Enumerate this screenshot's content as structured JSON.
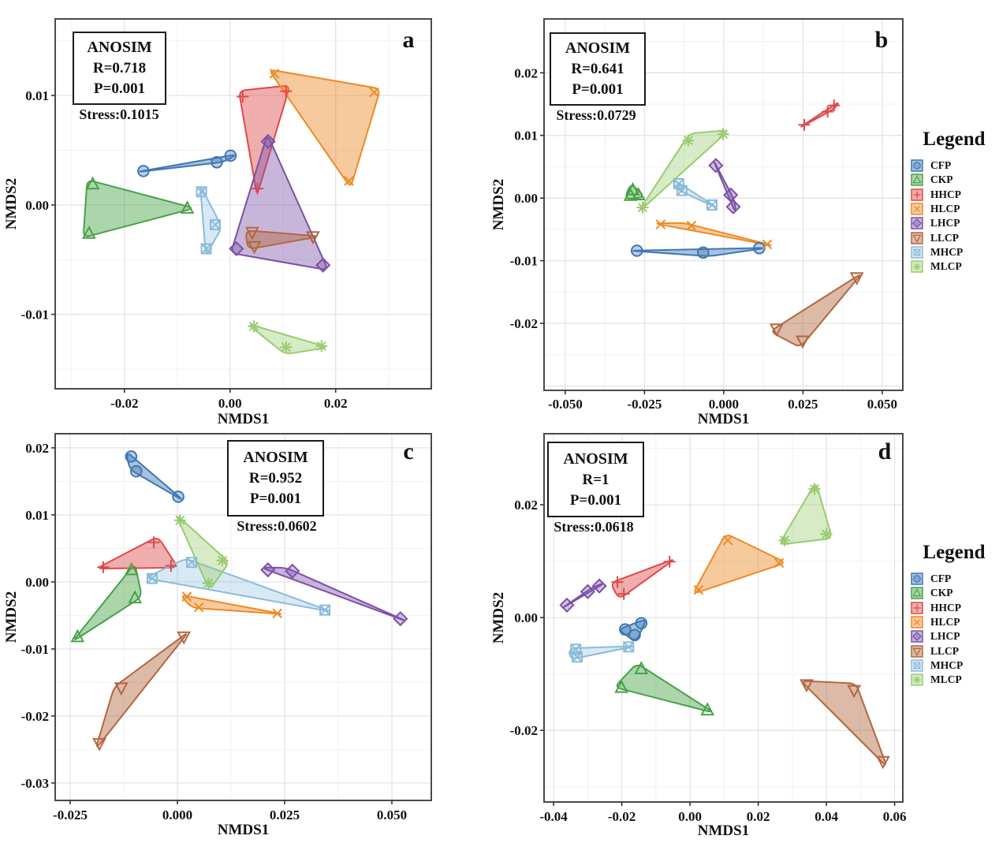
{
  "chart_data": {
    "type": "scatter",
    "figure_kind": "NMDS ordination with convex hulls, 4 panels",
    "legend_title": "Legend",
    "groups": [
      "CFP",
      "CKP",
      "HHCP",
      "HLCP",
      "LHCP",
      "LLCP",
      "MHCP",
      "MLCP"
    ],
    "palette": {
      "CFP": {
        "color": "#3F77B4",
        "marker": "circle",
        "hull_opacity": 0.45
      },
      "CKP": {
        "color": "#47A247",
        "marker": "triangle-up",
        "hull_opacity": 0.45
      },
      "HHCP": {
        "color": "#DE4A4A",
        "marker": "plus",
        "hull_opacity": 0.45
      },
      "HLCP": {
        "color": "#EE8A25",
        "marker": "x",
        "hull_opacity": 0.45
      },
      "LHCP": {
        "color": "#7C50A8",
        "marker": "diamond",
        "hull_opacity": 0.42
      },
      "LLCP": {
        "color": "#B2673F",
        "marker": "triangle-down",
        "hull_opacity": 0.45
      },
      "MHCP": {
        "color": "#8ABBDB",
        "marker": "box-x",
        "hull_opacity": 0.32
      },
      "MLCP": {
        "color": "#99CC70",
        "marker": "asterisk",
        "hull_opacity": 0.4
      }
    },
    "panels": [
      {
        "id": "a",
        "letter": "a",
        "anosim": [
          "ANOSIM",
          "R=0.718",
          "P=0.001"
        ],
        "stress": "Stress:0.1015",
        "xlabel": "NMDS1",
        "ylabel": "NMDS2",
        "xlim": [
          -0.0331,
          0.0381
        ],
        "ylim": [
          -0.0168,
          0.017
        ],
        "xticks": [
          {
            "v": -0.02,
            "label": "-0.02"
          },
          {
            "v": 0,
            "label": "0.00"
          },
          {
            "v": 0.02,
            "label": "0.02"
          }
        ],
        "yticks": [
          {
            "v": 0.01,
            "label": "0.01"
          },
          {
            "v": 0,
            "label": "0.00"
          },
          {
            "v": -0.01,
            "label": "-0.01"
          }
        ],
        "series": {
          "CFP": [
            [
              -0.0164,
              0.0031
            ],
            [
              -0.0025,
              0.0039
            ],
            [
              0.0001,
              0.0045
            ]
          ],
          "CKP": [
            [
              -0.026,
              0.0019
            ],
            [
              -0.0267,
              -0.0026
            ],
            [
              -0.0081,
              -0.0003
            ]
          ],
          "HHCP": [
            [
              0.0024,
              0.0099
            ],
            [
              0.0106,
              0.0104
            ],
            [
              0.0052,
              0.0015
            ]
          ],
          "HLCP": [
            [
              0.0084,
              0.012
            ],
            [
              0.0273,
              0.0103
            ],
            [
              0.0225,
              0.0022
            ]
          ],
          "LHCP": [
            [
              0.0072,
              0.0058
            ],
            [
              0.0012,
              -0.004
            ],
            [
              0.0176,
              -0.0055
            ]
          ],
          "LLCP": [
            [
              0.0042,
              -0.0025
            ],
            [
              0.0046,
              -0.0038
            ],
            [
              0.0157,
              -0.0029
            ]
          ],
          "MHCP": [
            [
              -0.0054,
              0.0012
            ],
            [
              -0.0028,
              -0.0018
            ],
            [
              -0.0045,
              -0.004
            ]
          ],
          "MLCP": [
            [
              0.0045,
              -0.0111
            ],
            [
              0.0106,
              -0.013
            ],
            [
              0.0173,
              -0.0129
            ]
          ]
        }
      },
      {
        "id": "b",
        "letter": "b",
        "anosim": [
          "ANOSIM",
          "R=0.641",
          "P=0.001"
        ],
        "stress": "Stress:0.0729",
        "xlabel": "NMDS1",
        "ylabel": "NMDS2",
        "xlim": [
          -0.0567,
          0.0565
        ],
        "ylim": [
          -0.0307,
          0.0286
        ],
        "xticks": [
          {
            "v": -0.05,
            "label": "-0.050"
          },
          {
            "v": -0.025,
            "label": "-0.025"
          },
          {
            "v": 0,
            "label": "0.000"
          },
          {
            "v": 0.025,
            "label": "0.025"
          },
          {
            "v": 0.05,
            "label": "0.050"
          }
        ],
        "yticks": [
          {
            "v": 0.02,
            "label": "0.02"
          },
          {
            "v": 0.01,
            "label": "0.01"
          },
          {
            "v": 0,
            "label": "0.00"
          },
          {
            "v": -0.01,
            "label": "-0.01"
          },
          {
            "v": -0.02,
            "label": "-0.02"
          }
        ],
        "series": {
          "CFP": [
            [
              -0.0274,
              -0.0084
            ],
            [
              -0.0065,
              -0.0087
            ],
            [
              0.0112,
              -0.008
            ]
          ],
          "CKP": [
            [
              -0.0294,
              0.0004
            ],
            [
              -0.0287,
              0.0013
            ],
            [
              -0.0269,
              0.0005
            ]
          ],
          "HHCP": [
            [
              0.0254,
              0.0117
            ],
            [
              0.0328,
              0.0138
            ],
            [
              0.0348,
              0.0148
            ]
          ],
          "HLCP": [
            [
              -0.0199,
              -0.0042
            ],
            [
              -0.0102,
              -0.0044
            ],
            [
              0.0137,
              -0.0074
            ]
          ],
          "LHCP": [
            [
              -0.0025,
              0.0052
            ],
            [
              0.0022,
              0.0005
            ],
            [
              0.003,
              -0.0014
            ]
          ],
          "LLCP": [
            [
              0.0167,
              -0.0209
            ],
            [
              0.0249,
              -0.0228
            ],
            [
              0.042,
              -0.0127
            ]
          ],
          "MHCP": [
            [
              -0.0142,
              0.0023
            ],
            [
              -0.0132,
              0.0012
            ],
            [
              -0.0037,
              -0.0011
            ]
          ],
          "MLCP": [
            [
              -0.0112,
              0.0092
            ],
            [
              -0.0002,
              0.0102
            ],
            [
              -0.0256,
              -0.0015
            ]
          ]
        }
      },
      {
        "id": "c",
        "letter": "c",
        "anosim": [
          "ANOSIM",
          "R=0.952",
          "P=0.001"
        ],
        "stress": "Stress:0.0602",
        "xlabel": "NMDS1",
        "ylabel": "NMDS2",
        "xlim": [
          -0.0285,
          0.0592
        ],
        "ylim": [
          -0.0326,
          0.0221
        ],
        "xticks": [
          {
            "v": -0.025,
            "label": "-0.025"
          },
          {
            "v": 0,
            "label": "0.000"
          },
          {
            "v": 0.025,
            "label": "0.025"
          },
          {
            "v": 0.05,
            "label": "0.050"
          }
        ],
        "yticks": [
          {
            "v": 0.02,
            "label": "0.02"
          },
          {
            "v": 0.01,
            "label": "0.01"
          },
          {
            "v": 0,
            "label": "0.00"
          },
          {
            "v": -0.01,
            "label": "-0.01"
          },
          {
            "v": -0.02,
            "label": "-0.02"
          },
          {
            "v": -0.03,
            "label": "-0.03"
          }
        ],
        "series": {
          "CFP": [
            [
              -0.0108,
              0.0187
            ],
            [
              -0.0096,
              0.0165
            ],
            [
              0.0002,
              0.0127
            ]
          ],
          "CKP": [
            [
              -0.0107,
              0.0018
            ],
            [
              -0.0099,
              -0.0024
            ],
            [
              -0.0233,
              -0.0082
            ]
          ],
          "HHCP": [
            [
              -0.0173,
              0.0022
            ],
            [
              -0.0055,
              0.0059
            ],
            [
              -0.0015,
              0.0024
            ]
          ],
          "HLCP": [
            [
              0.0022,
              -0.0022
            ],
            [
              0.005,
              -0.0038
            ],
            [
              0.0233,
              -0.0047
            ]
          ],
          "LHCP": [
            [
              0.0211,
              0.0018
            ],
            [
              0.0268,
              0.0016
            ],
            [
              0.052,
              -0.0055
            ]
          ],
          "LLCP": [
            [
              0.0015,
              -0.0082
            ],
            [
              -0.0131,
              -0.0158
            ],
            [
              -0.0182,
              -0.0241
            ]
          ],
          "MHCP": [
            [
              -0.0059,
              0.0005
            ],
            [
              0.0033,
              0.0029
            ],
            [
              0.0344,
              -0.0042
            ]
          ],
          "MLCP": [
            [
              0.0006,
              0.0092
            ],
            [
              0.0105,
              0.0032
            ],
            [
              0.0072,
              -0.0002
            ]
          ]
        }
      },
      {
        "id": "d",
        "letter": "d",
        "anosim": [
          "ANOSIM",
          "R=1",
          "P=0.001"
        ],
        "stress": "Stress:0.0618",
        "xlabel": "NMDS1",
        "ylabel": "NMDS2",
        "xlim": [
          -0.0428,
          0.0624
        ],
        "ylim": [
          -0.0327,
          0.0326
        ],
        "xticks": [
          {
            "v": -0.04,
            "label": "-0.04"
          },
          {
            "v": -0.02,
            "label": "-0.02"
          },
          {
            "v": 0,
            "label": "0.00"
          },
          {
            "v": 0.02,
            "label": "0.02"
          },
          {
            "v": 0.04,
            "label": "0.04"
          },
          {
            "v": 0.06,
            "label": "0.06"
          }
        ],
        "yticks": [
          {
            "v": 0.02,
            "label": "0.02"
          },
          {
            "v": 0,
            "label": "0.00"
          },
          {
            "v": -0.02,
            "label": "-0.02"
          }
        ],
        "series": {
          "CFP": [
            [
              -0.0143,
              -0.001
            ],
            [
              -0.0162,
              -0.0031
            ],
            [
              -0.019,
              -0.0021
            ]
          ],
          "CKP": [
            [
              -0.0143,
              -0.0091
            ],
            [
              -0.0201,
              -0.0124
            ],
            [
              0.0051,
              -0.0164
            ]
          ],
          "HHCP": [
            [
              -0.006,
              0.0099
            ],
            [
              -0.0213,
              0.0063
            ],
            [
              -0.0194,
              0.0042
            ]
          ],
          "HLCP": [
            [
              0.0111,
              0.0137
            ],
            [
              0.0261,
              0.0097
            ],
            [
              0.0025,
              0.0049
            ]
          ],
          "LHCP": [
            [
              -0.0361,
              0.0022
            ],
            [
              -0.03,
              0.0046
            ],
            [
              -0.0266,
              0.0056
            ]
          ],
          "LLCP": [
            [
              0.0342,
              -0.0119
            ],
            [
              0.0481,
              -0.0129
            ],
            [
              0.0566,
              -0.0255
            ]
          ],
          "MHCP": [
            [
              -0.018,
              -0.0052
            ],
            [
              -0.0335,
              -0.0056
            ],
            [
              -0.0331,
              -0.007
            ]
          ],
          "MLCP": [
            [
              0.0365,
              0.0228
            ],
            [
              0.04,
              0.0148
            ],
            [
              0.0277,
              0.0137
            ]
          ]
        }
      }
    ]
  }
}
